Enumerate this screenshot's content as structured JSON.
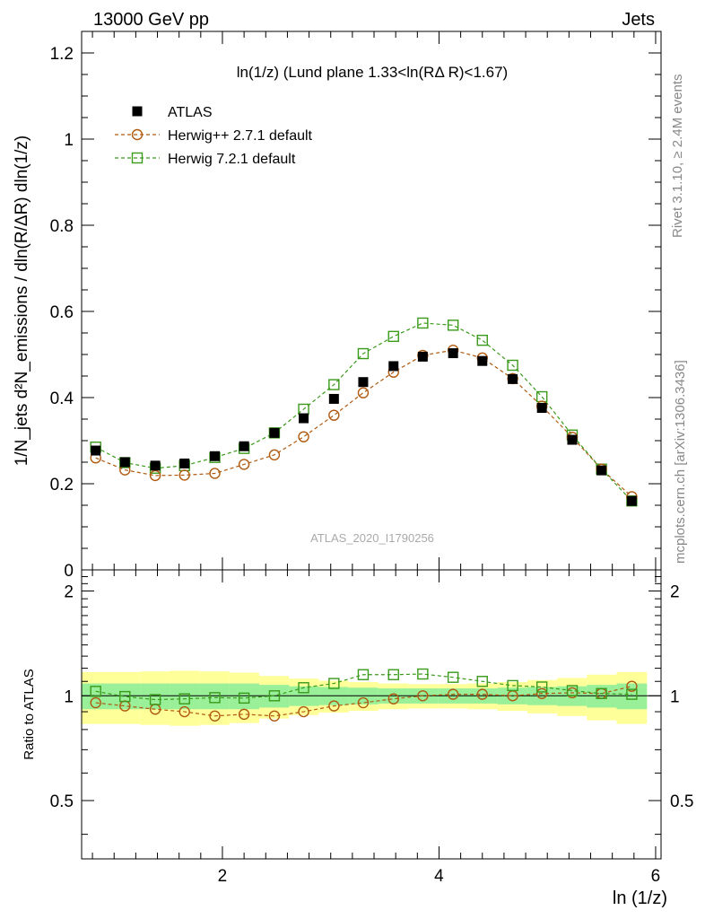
{
  "header": {
    "left": "13000 GeV pp",
    "right": "Jets"
  },
  "side_labels": {
    "rivet": "Rivet 3.1.10, ≥ 2.4M events",
    "mcplots": "mcplots.cern.ch [arXiv:1306.3436]"
  },
  "watermark": "ATLAS_2020_I1790256",
  "colors": {
    "atlas": "#000000",
    "herwigpp": "#b05a10",
    "herwig7": "#3a9a1a",
    "band_inner": "#99f099",
    "band_outer": "#ffff99"
  },
  "chart_data": [
    {
      "type": "scatter",
      "panel": "main",
      "title": "ln(1/z) (Lund plane 1.33<ln(RΔ R)<1.67)",
      "ylabel": "1/N_jets d²N_emissions / dln(R/ΔR) dln(1/z)",
      "xlabel": "ln (1/z)",
      "xlim": [
        0.7,
        6.05
      ],
      "ylim": [
        0,
        1.25
      ],
      "x_ticks": [
        "2",
        "4",
        "6"
      ],
      "y_ticks": [
        "0",
        "0.2",
        "0.4",
        "0.6",
        "0.8",
        "1",
        "1.2"
      ],
      "legend_position": "top-left",
      "x": [
        0.83,
        1.1,
        1.38,
        1.65,
        1.93,
        2.2,
        2.48,
        2.75,
        3.03,
        3.3,
        3.58,
        3.85,
        4.13,
        4.4,
        4.68,
        4.95,
        5.23,
        5.5,
        5.78
      ],
      "series": [
        {
          "name": "ATLAS",
          "marker": "filled-square",
          "values": [
            0.277,
            0.25,
            0.242,
            0.247,
            0.264,
            0.287,
            0.318,
            0.352,
            0.397,
            0.436,
            0.473,
            0.495,
            0.503,
            0.485,
            0.443,
            0.376,
            0.302,
            0.231,
            0.16
          ]
        },
        {
          "name": "Herwig++ 2.7.1 default",
          "marker": "open-circle",
          "values": [
            0.26,
            0.232,
            0.219,
            0.22,
            0.224,
            0.245,
            0.267,
            0.309,
            0.359,
            0.411,
            0.459,
            0.498,
            0.51,
            0.492,
            0.444,
            0.38,
            0.308,
            0.234,
            0.17
          ]
        },
        {
          "name": "Herwig 7.2.1 default",
          "marker": "open-square",
          "values": [
            0.285,
            0.249,
            0.236,
            0.242,
            0.261,
            0.282,
            0.318,
            0.373,
            0.43,
            0.502,
            0.542,
            0.573,
            0.568,
            0.533,
            0.475,
            0.402,
            0.313,
            0.234,
            0.16
          ]
        }
      ]
    },
    {
      "type": "scatter",
      "panel": "ratio",
      "ylabel": "Ratio to ATLAS",
      "xlim": [
        0.7,
        6.05
      ],
      "ylim": [
        0.34,
        2.3
      ],
      "y_ticks": [
        "0.5",
        "1",
        "2"
      ],
      "x": [
        0.83,
        1.1,
        1.38,
        1.65,
        1.93,
        2.2,
        2.48,
        2.75,
        3.03,
        3.3,
        3.58,
        3.85,
        4.13,
        4.4,
        4.68,
        4.95,
        5.23,
        5.5,
        5.78
      ],
      "band_inner": [
        0.085,
        0.085,
        0.085,
        0.085,
        0.085,
        0.085,
        0.075,
        0.065,
        0.06,
        0.055,
        0.05,
        0.05,
        0.05,
        0.05,
        0.055,
        0.06,
        0.065,
        0.075,
        0.085
      ],
      "band_outer": [
        0.17,
        0.17,
        0.175,
        0.18,
        0.175,
        0.165,
        0.14,
        0.12,
        0.105,
        0.095,
        0.085,
        0.08,
        0.08,
        0.085,
        0.095,
        0.11,
        0.125,
        0.15,
        0.17
      ],
      "series": [
        {
          "name": "Herwig++ 2.7.1 default",
          "values": [
            0.955,
            0.935,
            0.915,
            0.9,
            0.875,
            0.885,
            0.875,
            0.9,
            0.935,
            0.955,
            0.98,
            1.0,
            1.01,
            1.01,
            1.0,
            1.015,
            1.02,
            1.015,
            1.065
          ]
        },
        {
          "name": "Herwig 7.2.1 default",
          "values": [
            1.03,
            0.995,
            0.975,
            0.98,
            0.988,
            0.985,
            1.0,
            1.055,
            1.085,
            1.15,
            1.15,
            1.155,
            1.13,
            1.1,
            1.07,
            1.06,
            1.035,
            1.015,
            1.01
          ]
        }
      ]
    }
  ]
}
